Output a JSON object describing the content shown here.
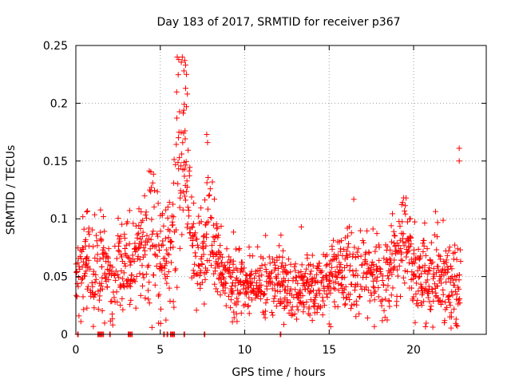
{
  "chart_data": {
    "type": "scatter",
    "title": "Day 183 of 2017, SRMTID for receiver p367",
    "xlabel": "GPS time / hours",
    "ylabel": "SRMTID / TECUs",
    "xlim": [
      0,
      24.3
    ],
    "ylim": [
      0,
      0.25
    ],
    "xticks": [
      0,
      5,
      10,
      15,
      20
    ],
    "xtick_labels": [
      "0",
      "5",
      "10",
      "15",
      "20"
    ],
    "yticks": [
      0,
      0.05,
      0.1,
      0.15,
      0.2,
      0.25
    ],
    "ytick_labels": [
      "0",
      "0.05",
      "0.1",
      "0.15",
      "0.2",
      "0.25"
    ],
    "grid": true,
    "marker": "+",
    "color": "#ff0000",
    "series": [
      {
        "name": "SRMTID",
        "profile_x": [
          0.0,
          0.5,
          1.0,
          1.5,
          2.0,
          2.5,
          3.0,
          3.3,
          3.6,
          4.0,
          4.5,
          5.0,
          5.3,
          5.6,
          5.9,
          6.1,
          6.3,
          6.5,
          6.8,
          7.0,
          7.3,
          7.6,
          7.8,
          8.0,
          8.5,
          9.0,
          10.0,
          11.0,
          12.0,
          13.0,
          14.0,
          15.0,
          16.0,
          17.0,
          18.0,
          19.0,
          19.5,
          20.0,
          21.0,
          22.0,
          22.8
        ],
        "profile_mean": [
          0.05,
          0.06,
          0.06,
          0.055,
          0.052,
          0.055,
          0.058,
          0.05,
          0.075,
          0.07,
          0.085,
          0.07,
          0.06,
          0.08,
          0.14,
          0.16,
          0.155,
          0.14,
          0.1,
          0.07,
          0.06,
          0.07,
          0.1,
          0.09,
          0.06,
          0.045,
          0.045,
          0.047,
          0.045,
          0.042,
          0.04,
          0.05,
          0.055,
          0.052,
          0.048,
          0.06,
          0.09,
          0.05,
          0.045,
          0.05,
          0.04
        ],
        "profile_spread": [
          0.015,
          0.02,
          0.022,
          0.02,
          0.02,
          0.02,
          0.02,
          0.015,
          0.025,
          0.025,
          0.03,
          0.025,
          0.015,
          0.03,
          0.04,
          0.04,
          0.04,
          0.035,
          0.03,
          0.02,
          0.015,
          0.02,
          0.03,
          0.025,
          0.015,
          0.015,
          0.015,
          0.015,
          0.015,
          0.015,
          0.015,
          0.015,
          0.018,
          0.018,
          0.017,
          0.02,
          0.02,
          0.02,
          0.017,
          0.02,
          0.02
        ],
        "peaks": [
          {
            "x": 6.45,
            "y": 0.237
          },
          {
            "x": 6.5,
            "y": 0.233
          },
          {
            "x": 6.4,
            "y": 0.228
          },
          {
            "x": 6.55,
            "y": 0.225
          },
          {
            "x": 6.5,
            "y": 0.213
          },
          {
            "x": 6.6,
            "y": 0.208
          },
          {
            "x": 6.55,
            "y": 0.197
          },
          {
            "x": 7.75,
            "y": 0.173
          },
          {
            "x": 7.8,
            "y": 0.166
          },
          {
            "x": 22.7,
            "y": 0.161
          },
          {
            "x": 22.7,
            "y": 0.15
          },
          {
            "x": 4.55,
            "y": 0.131
          },
          {
            "x": 19.55,
            "y": 0.118
          },
          {
            "x": 0.65,
            "y": 0.106
          },
          {
            "x": 13.35,
            "y": 0.093
          },
          {
            "x": 15.0,
            "y": 0.009
          },
          {
            "x": 14.0,
            "y": 0.012
          }
        ],
        "zero_value_x": [
          0.1,
          1.3,
          1.4,
          1.5,
          1.6,
          2.0,
          3.1,
          3.2,
          3.3,
          5.2,
          5.4,
          5.6,
          5.7,
          5.8,
          6.4,
          7.6,
          12.1
        ]
      }
    ]
  }
}
